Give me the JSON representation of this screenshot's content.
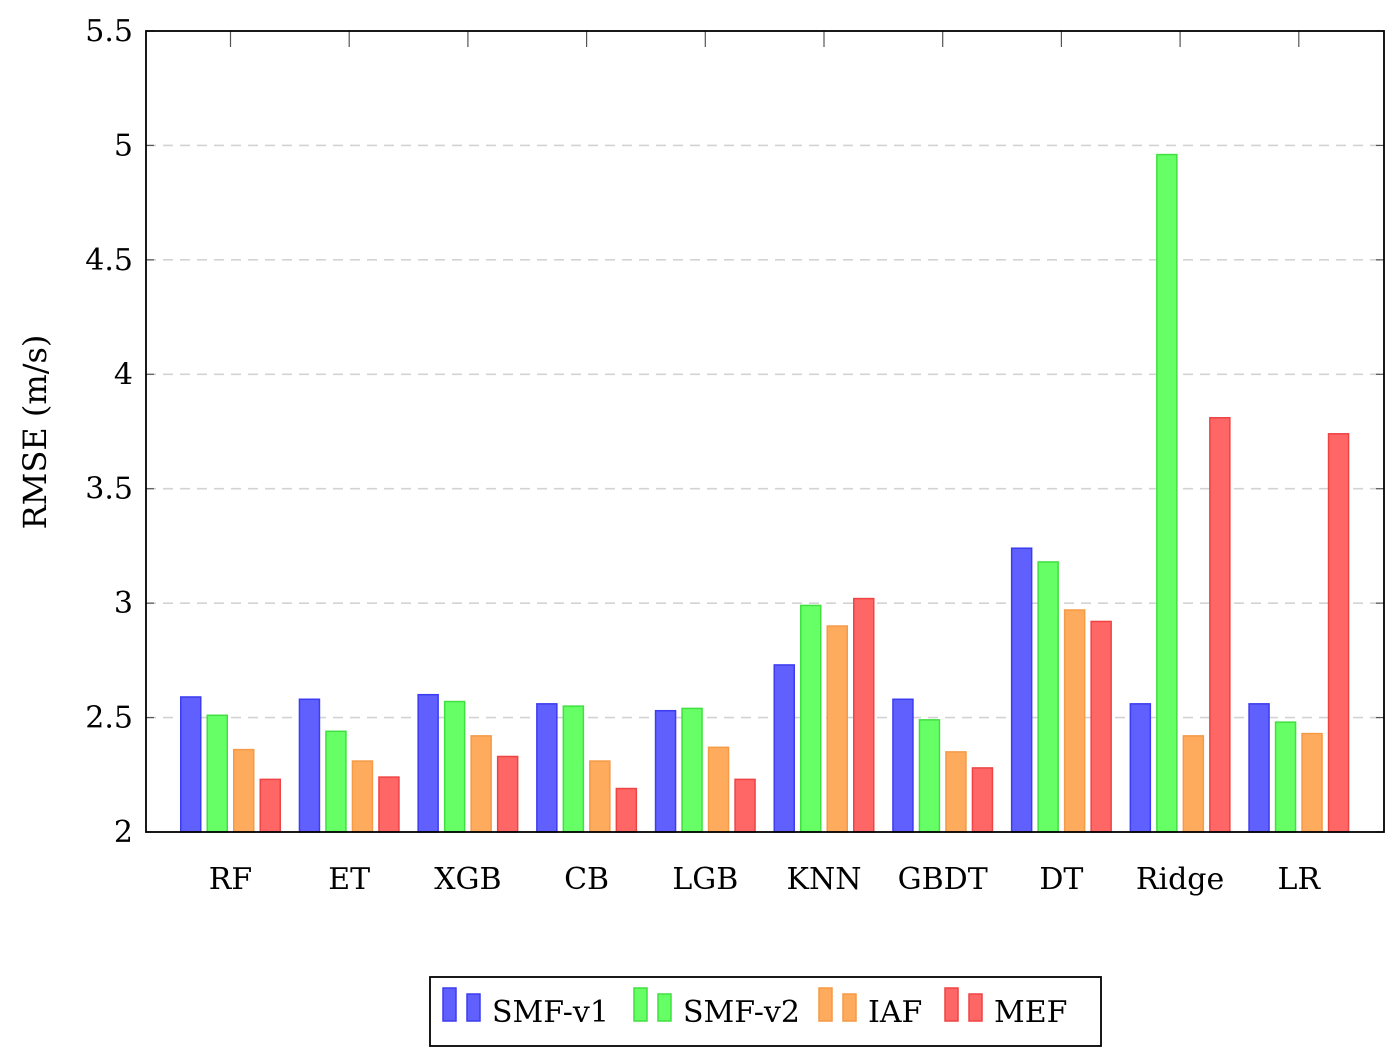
{
  "chart_data": {
    "type": "bar",
    "title": "",
    "xlabel": "",
    "ylabel": "RMSE (m/s)",
    "ylim": [
      2,
      5.5
    ],
    "yticks": [
      "2",
      "2.5",
      "3",
      "3.5",
      "4",
      "4.5",
      "5",
      "5.5"
    ],
    "grid": "horizontal dashed",
    "legend_position": "bottom-center",
    "categories": [
      "RF",
      "ET",
      "XGB",
      "CB",
      "LGB",
      "KNN",
      "GBDT",
      "DT",
      "Ridge",
      "LR"
    ],
    "series": [
      {
        "name": "SMF-v1",
        "fill": "#6060ff",
        "stroke": "#3c3cf0",
        "values": [
          2.59,
          2.58,
          2.6,
          2.56,
          2.53,
          2.73,
          2.58,
          3.24,
          2.56,
          2.56
        ]
      },
      {
        "name": "SMF-v2",
        "fill": "#66ff66",
        "stroke": "#3fe03f",
        "values": [
          2.51,
          2.44,
          2.57,
          2.55,
          2.54,
          2.99,
          2.49,
          3.18,
          4.96,
          2.48
        ]
      },
      {
        "name": "IAF",
        "fill": "#ffab5e",
        "stroke": "#f59a45",
        "values": [
          2.36,
          2.31,
          2.42,
          2.31,
          2.37,
          2.9,
          2.35,
          2.97,
          2.42,
          2.43
        ]
      },
      {
        "name": "MEF",
        "fill": "#ff6666",
        "stroke": "#ee4444",
        "values": [
          2.23,
          2.24,
          2.33,
          2.19,
          2.23,
          3.02,
          2.28,
          2.92,
          3.81,
          3.74
        ]
      }
    ]
  }
}
